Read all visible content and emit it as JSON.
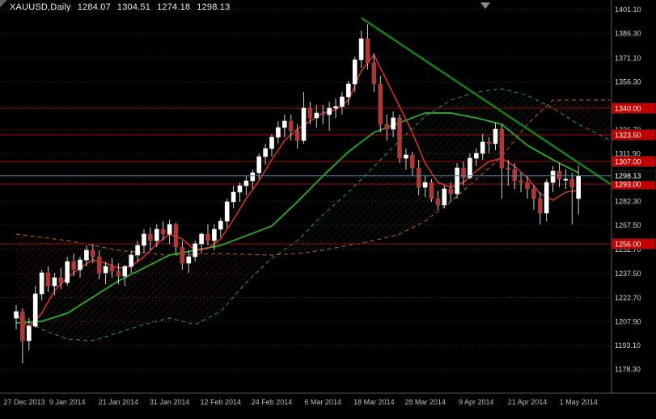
{
  "chart_data": {
    "type": "candlestick",
    "symbol": "XAUUSD",
    "timeframe": "Daily",
    "header": {
      "symbol_period": "XAUUSD,Daily",
      "open": "1284.07",
      "high": "1304.51",
      "low": "1274.18",
      "close": "1298.13"
    },
    "x_axis": {
      "labels": [
        "27 Dec 2013",
        "9 Jan 2014",
        "21 Jan 2014",
        "31 Jan 2014",
        "12 Feb 2014",
        "24 Feb 2014",
        "6 Mar 2014",
        "18 Mar 2014",
        "28 Mar 2014",
        "9 Apr 2014",
        "21 Apr 2014",
        "1 May 2014"
      ],
      "label_bar_indices": [
        0,
        8,
        16,
        24,
        32,
        40,
        48,
        56,
        64,
        72,
        80,
        88
      ]
    },
    "y_axis": {
      "labels": [
        "1401.10",
        "1386.30",
        "1371.10",
        "1356.30",
        "1341.50",
        "1326.70",
        "1311.90",
        "1297.10",
        "1282.30",
        "1267.50",
        "1252.70",
        "1237.50",
        "1222.70",
        "1207.90",
        "1193.10",
        "1178.30"
      ]
    },
    "levels": [
      {
        "price": 1340.0,
        "label": "1340.00"
      },
      {
        "price": 1323.5,
        "label": "1323.50"
      },
      {
        "price": 1307.0,
        "label": "1307.00"
      },
      {
        "price": 1293.0,
        "label": "1293.00"
      },
      {
        "price": 1256.0,
        "label": "1256.00"
      }
    ],
    "current_price": {
      "price": 1298.13,
      "label": "1298.13"
    },
    "candles": [
      [
        1210,
        1218,
        1203,
        1214
      ],
      [
        1214,
        1216,
        1182,
        1196
      ],
      [
        1196,
        1210,
        1190,
        1205
      ],
      [
        1205,
        1230,
        1204,
        1225
      ],
      [
        1225,
        1240,
        1221,
        1238
      ],
      [
        1238,
        1242,
        1226,
        1230
      ],
      [
        1230,
        1238,
        1224,
        1235
      ],
      [
        1235,
        1241,
        1228,
        1232
      ],
      [
        1232,
        1248,
        1230,
        1245
      ],
      [
        1245,
        1250,
        1236,
        1240
      ],
      [
        1240,
        1248,
        1235,
        1246
      ],
      [
        1246,
        1255,
        1242,
        1252
      ],
      [
        1252,
        1256,
        1244,
        1248
      ],
      [
        1248,
        1252,
        1234,
        1238
      ],
      [
        1238,
        1245,
        1231,
        1242
      ],
      [
        1242,
        1247,
        1235,
        1239
      ],
      [
        1239,
        1244,
        1231,
        1236
      ],
      [
        1236,
        1243,
        1230,
        1242
      ],
      [
        1242,
        1252,
        1238,
        1249
      ],
      [
        1249,
        1258,
        1245,
        1255
      ],
      [
        1255,
        1265,
        1250,
        1262
      ],
      [
        1262,
        1266,
        1252,
        1258
      ],
      [
        1258,
        1268,
        1254,
        1265
      ],
      [
        1265,
        1270,
        1258,
        1262
      ],
      [
        1262,
        1271,
        1256,
        1268
      ],
      [
        1268,
        1269,
        1250,
        1254
      ],
      [
        1254,
        1258,
        1240,
        1244
      ],
      [
        1244,
        1252,
        1238,
        1248
      ],
      [
        1248,
        1258,
        1245,
        1256
      ],
      [
        1256,
        1263,
        1250,
        1262
      ],
      [
        1262,
        1268,
        1255,
        1258
      ],
      [
        1258,
        1268,
        1252,
        1265
      ],
      [
        1265,
        1272,
        1260,
        1270
      ],
      [
        1270,
        1284,
        1266,
        1282
      ],
      [
        1282,
        1292,
        1278,
        1288
      ],
      [
        1288,
        1294,
        1282,
        1292
      ],
      [
        1292,
        1298,
        1286,
        1295
      ],
      [
        1295,
        1302,
        1290,
        1300
      ],
      [
        1300,
        1312,
        1296,
        1310
      ],
      [
        1310,
        1318,
        1305,
        1315
      ],
      [
        1315,
        1324,
        1310,
        1322
      ],
      [
        1322,
        1332,
        1318,
        1328
      ],
      [
        1328,
        1336,
        1322,
        1332
      ],
      [
        1332,
        1336,
        1320,
        1326
      ],
      [
        1326,
        1330,
        1315,
        1320
      ],
      [
        1320,
        1350,
        1318,
        1340
      ],
      [
        1340,
        1344,
        1330,
        1334
      ],
      [
        1334,
        1342,
        1328,
        1337
      ],
      [
        1337,
        1342,
        1330,
        1336
      ],
      [
        1336,
        1344,
        1326,
        1340
      ],
      [
        1340,
        1346,
        1334,
        1341
      ],
      [
        1341,
        1350,
        1336,
        1347
      ],
      [
        1347,
        1357,
        1342,
        1355
      ],
      [
        1355,
        1372,
        1350,
        1370
      ],
      [
        1370,
        1388,
        1365,
        1383
      ],
      [
        1383,
        1392,
        1364,
        1368
      ],
      [
        1368,
        1374,
        1350,
        1355
      ],
      [
        1355,
        1360,
        1325,
        1330
      ],
      [
        1330,
        1336,
        1320,
        1327
      ],
      [
        1327,
        1338,
        1322,
        1334
      ],
      [
        1334,
        1336,
        1306,
        1309
      ],
      [
        1309,
        1315,
        1302,
        1311
      ],
      [
        1311,
        1313,
        1298,
        1303
      ],
      [
        1303,
        1308,
        1286,
        1291
      ],
      [
        1291,
        1298,
        1285,
        1294
      ],
      [
        1294,
        1296,
        1282,
        1284
      ],
      [
        1284,
        1289,
        1277,
        1280
      ],
      [
        1280,
        1292,
        1278,
        1290
      ],
      [
        1290,
        1294,
        1282,
        1287
      ],
      [
        1287,
        1306,
        1284,
        1303
      ],
      [
        1303,
        1307,
        1292,
        1297
      ],
      [
        1297,
        1312,
        1296,
        1309
      ],
      [
        1309,
        1315,
        1304,
        1312
      ],
      [
        1312,
        1324,
        1308,
        1319
      ],
      [
        1319,
        1322,
        1312,
        1318
      ],
      [
        1318,
        1331,
        1314,
        1327
      ],
      [
        1327,
        1330,
        1284,
        1303
      ],
      [
        1303,
        1308,
        1292,
        1302
      ],
      [
        1302,
        1306,
        1290,
        1295
      ],
      [
        1295,
        1300,
        1288,
        1294
      ],
      [
        1294,
        1298,
        1284,
        1290
      ],
      [
        1290,
        1292,
        1277,
        1284
      ],
      [
        1284,
        1288,
        1268,
        1275
      ],
      [
        1275,
        1296,
        1270,
        1294
      ],
      [
        1294,
        1304,
        1288,
        1301
      ],
      [
        1301,
        1306,
        1291,
        1296
      ],
      [
        1296,
        1302,
        1290,
        1296
      ],
      [
        1296,
        1300,
        1268,
        1291
      ],
      [
        1284.07,
        1304.51,
        1274.18,
        1298.13
      ]
    ],
    "ichimoku": {
      "tenkan": [
        [
          0,
          1212
        ],
        [
          2,
          1204
        ],
        [
          4,
          1213
        ],
        [
          6,
          1227
        ],
        [
          8,
          1235
        ],
        [
          10,
          1241
        ],
        [
          12,
          1246
        ],
        [
          14,
          1244
        ],
        [
          16,
          1241
        ],
        [
          18,
          1242
        ],
        [
          20,
          1248
        ],
        [
          22,
          1256
        ],
        [
          24,
          1262
        ],
        [
          26,
          1259
        ],
        [
          28,
          1252
        ],
        [
          30,
          1253
        ],
        [
          32,
          1259
        ],
        [
          34,
          1271
        ],
        [
          36,
          1284
        ],
        [
          38,
          1295
        ],
        [
          40,
          1308
        ],
        [
          42,
          1320
        ],
        [
          44,
          1327
        ],
        [
          46,
          1332
        ],
        [
          48,
          1337
        ],
        [
          50,
          1339
        ],
        [
          52,
          1345
        ],
        [
          54,
          1363
        ],
        [
          56,
          1373
        ],
        [
          58,
          1357
        ],
        [
          60,
          1341
        ],
        [
          62,
          1325
        ],
        [
          64,
          1306
        ],
        [
          66,
          1294
        ],
        [
          68,
          1291
        ],
        [
          70,
          1294
        ],
        [
          72,
          1301
        ],
        [
          74,
          1307
        ],
        [
          76,
          1309
        ],
        [
          78,
          1304
        ],
        [
          80,
          1297
        ],
        [
          82,
          1287
        ],
        [
          84,
          1283
        ],
        [
          86,
          1288
        ],
        [
          88,
          1289
        ]
      ],
      "kijun": [
        [
          0,
          1207
        ],
        [
          4,
          1208
        ],
        [
          8,
          1213
        ],
        [
          12,
          1223
        ],
        [
          16,
          1233
        ],
        [
          20,
          1241
        ],
        [
          24,
          1249
        ],
        [
          28,
          1252
        ],
        [
          32,
          1255
        ],
        [
          36,
          1261
        ],
        [
          40,
          1267
        ],
        [
          44,
          1282
        ],
        [
          48,
          1298
        ],
        [
          52,
          1313
        ],
        [
          56,
          1325
        ],
        [
          60,
          1331
        ],
        [
          64,
          1337
        ],
        [
          68,
          1337
        ],
        [
          72,
          1334
        ],
        [
          76,
          1330
        ],
        [
          80,
          1317
        ],
        [
          84,
          1308
        ],
        [
          88,
          1300
        ]
      ],
      "senkou_a": [
        [
          0,
          1212
        ],
        [
          4,
          1203
        ],
        [
          8,
          1197
        ],
        [
          12,
          1196
        ],
        [
          16,
          1201
        ],
        [
          20,
          1206
        ],
        [
          24,
          1210
        ],
        [
          28,
          1206
        ],
        [
          32,
          1214
        ],
        [
          36,
          1232
        ],
        [
          40,
          1247
        ],
        [
          44,
          1258
        ],
        [
          48,
          1274
        ],
        [
          52,
          1288
        ],
        [
          56,
          1304
        ],
        [
          60,
          1320
        ],
        [
          64,
          1335
        ],
        [
          68,
          1345
        ],
        [
          72,
          1350
        ],
        [
          76,
          1352
        ],
        [
          80,
          1348
        ],
        [
          84,
          1340
        ],
        [
          88,
          1330
        ],
        [
          93,
          1320
        ]
      ],
      "senkou_b": [
        [
          0,
          1262
        ],
        [
          8,
          1258
        ],
        [
          16,
          1252
        ],
        [
          24,
          1249
        ],
        [
          32,
          1250
        ],
        [
          40,
          1249
        ],
        [
          44,
          1250
        ],
        [
          48,
          1252
        ],
        [
          52,
          1255
        ],
        [
          56,
          1258
        ],
        [
          60,
          1262
        ],
        [
          64,
          1270
        ],
        [
          68,
          1282
        ],
        [
          72,
          1296
        ],
        [
          76,
          1310
        ],
        [
          80,
          1330
        ],
        [
          84,
          1345
        ],
        [
          93,
          1345
        ]
      ]
    },
    "trendline": {
      "points": [
        [
          54,
          1396
        ],
        [
          93,
          1293
        ]
      ]
    },
    "colors": {
      "background": "#000000",
      "bull": "#ffffff",
      "bear": "#aa3a3a",
      "wick": "#d0d0d0",
      "grid": "#3d3d3d",
      "axis_text": "#d6d6d6",
      "date_text": "#bdbdbd",
      "separator": "#5a5a5a",
      "tenkan": "#d93333",
      "kijun": "#2aa02a",
      "trendline": "#1b7a1b",
      "senkou_a": "#2f9e3f",
      "senkou_b": "#c8641e",
      "cloud_bull_hatch": "#2e8b45",
      "cloud_bear_hatch": "#bf5a1e",
      "level_line": "#9e0b0b",
      "level_badge": "#c00000",
      "badge_text": "#ffffff",
      "price_line": "#4c7ca0",
      "price_badge": "#050505"
    }
  }
}
